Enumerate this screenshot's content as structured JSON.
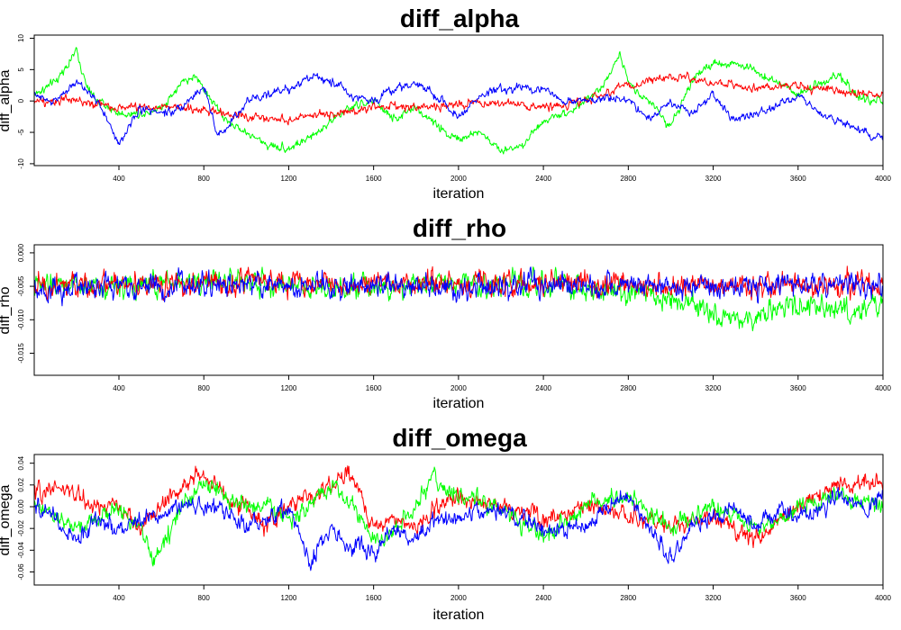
{
  "chart_data": [
    {
      "type": "line",
      "title": "diff_alpha",
      "xlabel": "iteration",
      "ylabel": "diff_alpha",
      "xlim": [
        1,
        4000
      ],
      "ylim": [
        -10.3,
        10.5
      ],
      "xticks": [
        400,
        800,
        1200,
        1600,
        2000,
        2400,
        2800,
        3200,
        3600,
        4000
      ],
      "xtick_labels": [
        "400",
        "800",
        "1200",
        "1600",
        "2000",
        "2400",
        "2800",
        "3200",
        "3600",
        "4000"
      ],
      "yticks": [
        -10,
        -5,
        0,
        5,
        10
      ],
      "ytick_labels": [
        "-10",
        "-5",
        "0",
        "5",
        "10"
      ],
      "noise": 0.9,
      "series": [
        {
          "color": "#00ff00",
          "x": [
            1,
            100,
            200,
            250,
            300,
            400,
            500,
            600,
            700,
            760,
            800,
            900,
            1000,
            1100,
            1200,
            1300,
            1400,
            1500,
            1600,
            1700,
            1800,
            1900,
            2000,
            2100,
            2200,
            2300,
            2400,
            2500,
            2600,
            2700,
            2760,
            2800,
            2900,
            3000,
            3100,
            3200,
            3300,
            3400,
            3500,
            3600,
            3700,
            3800,
            3900,
            4000
          ],
          "y": [
            1,
            3,
            8,
            2,
            0,
            -2,
            -2,
            -1,
            3,
            4,
            2,
            -3,
            -5,
            -7,
            -7.5,
            -6,
            -3,
            -1,
            0,
            -3,
            -1,
            -4,
            -6,
            -5,
            -8,
            -7,
            -3,
            -2,
            0,
            3,
            8,
            3,
            0,
            -4,
            3,
            6,
            6,
            5,
            3,
            1,
            3,
            4,
            0,
            0
          ]
        },
        {
          "color": "#ff0000",
          "x": [
            1,
            200,
            400,
            600,
            800,
            1000,
            1200,
            1400,
            1600,
            1800,
            2000,
            2200,
            2400,
            2600,
            2800,
            3000,
            3200,
            3400,
            3600,
            3800,
            4000
          ],
          "y": [
            0,
            0,
            -1,
            -1,
            -1.5,
            -2.5,
            -3,
            -2,
            -1,
            -1,
            -0.5,
            -0.5,
            -1,
            0,
            2.5,
            4,
            3,
            2,
            2.5,
            1.5,
            1
          ]
        },
        {
          "color": "#0000ff",
          "x": [
            1,
            100,
            200,
            300,
            400,
            500,
            600,
            700,
            800,
            860,
            900,
            1000,
            1100,
            1200,
            1300,
            1400,
            1500,
            1600,
            1700,
            1800,
            1900,
            2000,
            2100,
            2200,
            2300,
            2400,
            2500,
            2600,
            2700,
            2800,
            2900,
            3000,
            3100,
            3200,
            3300,
            3400,
            3500,
            3600,
            3700,
            3800,
            3900,
            4000
          ],
          "y": [
            1,
            0,
            3,
            0,
            -7,
            -1,
            -2,
            -1,
            2,
            -5,
            -5,
            0,
            1,
            2,
            4,
            3,
            1,
            0,
            2,
            3,
            1,
            -3,
            1,
            2,
            2,
            2,
            0,
            0,
            1,
            0,
            -3,
            0,
            -2,
            1,
            -3,
            -2,
            -1,
            1,
            -2,
            -3,
            -5,
            -6
          ]
        }
      ]
    },
    {
      "type": "line",
      "title": "diff_rho",
      "xlabel": "iteration",
      "ylabel": "diff_rho",
      "xlim": [
        1,
        4000
      ],
      "ylim": [
        -0.0183,
        0.0012
      ],
      "xticks": [
        400,
        800,
        1200,
        1600,
        2000,
        2400,
        2800,
        3200,
        3600,
        4000
      ],
      "xtick_labels": [
        "400",
        "800",
        "1200",
        "1600",
        "2000",
        "2400",
        "2800",
        "3200",
        "3600",
        "4000"
      ],
      "yticks": [
        -0.015,
        -0.01,
        -0.005,
        0
      ],
      "ytick_labels": [
        "-0.015",
        "-0.010",
        "-0.005",
        "0.000"
      ],
      "noise": 0.0024,
      "series": [
        {
          "color": "#00ff00",
          "x": [
            1,
            500,
            800,
            1000,
            1500,
            2000,
            2400,
            2800,
            3000,
            3200,
            3300,
            3400,
            3600,
            3800,
            4000
          ],
          "y": [
            -0.005,
            -0.005,
            -0.004,
            -0.0045,
            -0.005,
            -0.0045,
            -0.005,
            -0.006,
            -0.007,
            -0.009,
            -0.011,
            -0.009,
            -0.008,
            -0.009,
            -0.008
          ]
        },
        {
          "color": "#ff0000",
          "x": [
            1,
            1000,
            2000,
            3000,
            4000
          ],
          "y": [
            -0.0048,
            -0.0045,
            -0.0045,
            -0.0048,
            -0.0048
          ]
        },
        {
          "color": "#0000ff",
          "x": [
            1,
            1000,
            2000,
            3000,
            4000
          ],
          "y": [
            -0.0052,
            -0.0048,
            -0.005,
            -0.005,
            -0.0048
          ]
        }
      ]
    },
    {
      "type": "line",
      "title": "diff_omega",
      "xlabel": "iteration",
      "ylabel": "diff_omega",
      "xlim": [
        1,
        4000
      ],
      "ylim": [
        -0.072,
        0.048
      ],
      "xticks": [
        400,
        800,
        1200,
        1600,
        2000,
        2400,
        2800,
        3200,
        3600,
        4000
      ],
      "xtick_labels": [
        "400",
        "800",
        "1200",
        "1600",
        "2000",
        "2400",
        "2800",
        "3200",
        "3600",
        "4000"
      ],
      "yticks": [
        -0.06,
        -0.04,
        -0.02,
        0,
        0.02,
        0.04
      ],
      "ytick_labels": [
        "-0.06",
        "-0.04",
        "-0.02",
        "0.00",
        "0.02",
        "0.04"
      ],
      "noise": 0.011,
      "series": [
        {
          "color": "#ff0000",
          "x": [
            1,
            100,
            200,
            300,
            400,
            500,
            600,
            700,
            800,
            900,
            1000,
            1100,
            1200,
            1300,
            1400,
            1500,
            1600,
            1700,
            1800,
            1900,
            2000,
            2200,
            2400,
            2600,
            2800,
            3000,
            3200,
            3400,
            3600,
            3800,
            4000
          ],
          "y": [
            0.01,
            0.02,
            0.01,
            0.0,
            0.0,
            -0.02,
            0.0,
            0.02,
            0.03,
            0.01,
            0.0,
            -0.02,
            0.0,
            0.01,
            0.02,
            0.03,
            -0.02,
            -0.01,
            -0.02,
            0.0,
            0.01,
            0.0,
            -0.01,
            0.0,
            -0.01,
            -0.02,
            -0.01,
            -0.03,
            0.0,
            0.02,
            0.02
          ]
        },
        {
          "color": "#00ff00",
          "x": [
            1,
            100,
            200,
            300,
            400,
            500,
            560,
            600,
            700,
            800,
            900,
            1000,
            1100,
            1200,
            1300,
            1400,
            1500,
            1600,
            1700,
            1800,
            1880,
            1900,
            2000,
            2200,
            2400,
            2600,
            2800,
            3000,
            3200,
            3400,
            3600,
            3800,
            4000
          ],
          "y": [
            0.0,
            -0.01,
            -0.02,
            -0.01,
            0.0,
            -0.02,
            -0.05,
            -0.04,
            0.0,
            0.02,
            0.01,
            0.0,
            0.0,
            -0.01,
            0.0,
            0.02,
            0.0,
            -0.03,
            -0.02,
            0.0,
            0.03,
            0.02,
            0.01,
            0.0,
            -0.03,
            0.0,
            0.01,
            -0.02,
            0.0,
            -0.02,
            0.0,
            0.01,
            0.0
          ]
        },
        {
          "color": "#0000ff",
          "x": [
            1,
            100,
            200,
            300,
            400,
            500,
            600,
            700,
            800,
            900,
            1000,
            1100,
            1200,
            1300,
            1400,
            1500,
            1600,
            1700,
            1800,
            1900,
            2000,
            2200,
            2400,
            2600,
            2700,
            2800,
            2900,
            3000,
            3100,
            3200,
            3300,
            3400,
            3500,
            3600,
            3700,
            3800,
            3900,
            4000
          ],
          "y": [
            0.0,
            -0.01,
            -0.03,
            -0.01,
            -0.02,
            -0.01,
            -0.01,
            0.0,
            0.0,
            0.0,
            -0.02,
            -0.01,
            0.0,
            -0.05,
            -0.02,
            -0.04,
            -0.04,
            -0.02,
            -0.03,
            -0.01,
            -0.01,
            0.0,
            -0.02,
            -0.02,
            0.0,
            0.01,
            -0.02,
            -0.05,
            -0.02,
            -0.01,
            0.0,
            -0.02,
            0.0,
            -0.01,
            0.0,
            0.01,
            0.0,
            0.01
          ]
        }
      ]
    }
  ]
}
